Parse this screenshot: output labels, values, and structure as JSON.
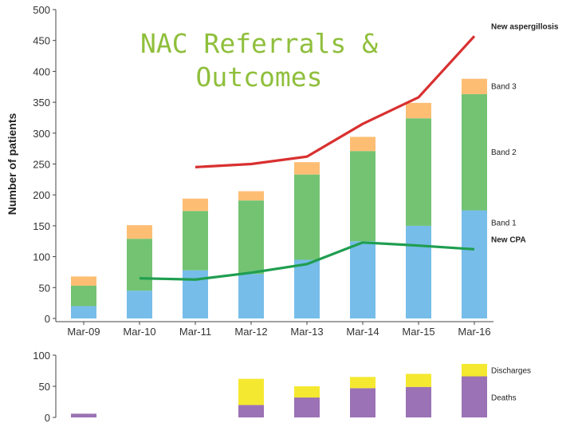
{
  "chart_data": [
    {
      "type": "bar",
      "title": "NAC Referrals & Outcomes",
      "ylabel": "Number of patients",
      "ylim": [
        0,
        500
      ],
      "yticks": [
        0,
        50,
        100,
        150,
        200,
        250,
        300,
        350,
        400,
        450,
        500
      ],
      "categories": [
        "Mar-09",
        "Mar-10",
        "Mar-11",
        "Mar-12",
        "Mar-13",
        "Mar-14",
        "Mar-15",
        "Mar-16"
      ],
      "stacked": true,
      "series": [
        {
          "name": "Band 1",
          "color": "#77bde9",
          "values": [
            20,
            45,
            78,
            72,
            95,
            125,
            150,
            175
          ]
        },
        {
          "name": "Band 2",
          "color": "#73c373",
          "values": [
            33,
            84,
            96,
            119,
            138,
            146,
            174,
            188
          ]
        },
        {
          "name": "Band 3",
          "color": "#fdbe74",
          "values": [
            15,
            22,
            20,
            15,
            20,
            23,
            25,
            25
          ]
        }
      ],
      "lines": [
        {
          "name": "New aspergillosis",
          "color": "#d93030",
          "x": [
            "Mar-11",
            "Mar-12",
            "Mar-13",
            "Mar-14",
            "Mar-15",
            "Mar-16"
          ],
          "values": [
            245,
            250,
            262,
            315,
            358,
            457
          ]
        },
        {
          "name": "New CPA",
          "color": "#1f9e50",
          "x": [
            "Mar-10",
            "Mar-11",
            "Mar-12",
            "Mar-13",
            "Mar-14",
            "Mar-15",
            "Mar-16"
          ],
          "values": [
            65,
            63,
            74,
            88,
            123,
            118,
            112
          ]
        }
      ],
      "grid": false,
      "legend": "right, inline labels"
    },
    {
      "type": "bar",
      "categories": [
        "Mar-09",
        "Mar-10",
        "Mar-11",
        "Mar-12",
        "Mar-13",
        "Mar-14",
        "Mar-15",
        "Mar-16"
      ],
      "ylim": [
        0,
        100
      ],
      "yticks": [
        0,
        50,
        100
      ],
      "stacked": true,
      "series": [
        {
          "name": "Deaths",
          "color": "#9b72b5",
          "values": [
            6,
            null,
            null,
            20,
            32,
            47,
            49,
            66
          ]
        },
        {
          "name": "Discharges",
          "color": "#f5e830",
          "values": [
            0,
            null,
            null,
            42,
            18,
            18,
            21,
            20
          ]
        }
      ],
      "grid": false,
      "legend": "right, inline labels"
    }
  ]
}
